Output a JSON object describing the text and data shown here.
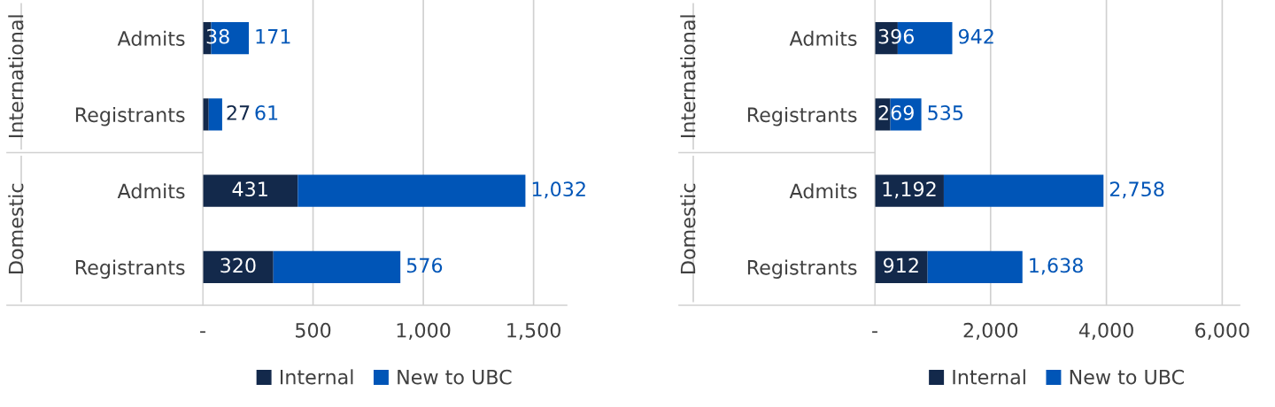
{
  "chart_data": [
    {
      "type": "bar",
      "orientation": "horizontal",
      "stacked": true,
      "categories": [
        "Admits",
        "Registrants",
        "Admits",
        "Registrants"
      ],
      "annotations": [
        "International",
        "Domestic"
      ],
      "series": [
        {
          "name": "Internal",
          "color": "#13294b",
          "values": [
            38,
            27,
            431,
            320
          ],
          "value_labels": [
            "38",
            "27",
            "431",
            "320"
          ]
        },
        {
          "name": "New to UBC",
          "color": "#0055b7",
          "values": [
            171,
            61,
            1032,
            576
          ],
          "value_labels": [
            "171",
            "61",
            "1,032",
            "576"
          ]
        }
      ],
      "xlim": [
        0,
        1650
      ],
      "xticks": [
        {
          "value": 0,
          "label": "-"
        },
        500,
        {
          "value": 1000,
          "label": "1,000"
        },
        {
          "value": 1500,
          "label": "1,500"
        }
      ],
      "grid": "x",
      "legend": "bottom"
    },
    {
      "type": "bar",
      "orientation": "horizontal",
      "stacked": true,
      "categories": [
        "Admits",
        "Registrants",
        "Admits",
        "Registrants"
      ],
      "annotations": [
        "International",
        "Domestic"
      ],
      "series": [
        {
          "name": "Internal",
          "color": "#13294b",
          "values": [
            396,
            269,
            1192,
            912
          ],
          "value_labels": [
            "396",
            "269",
            "1,192",
            "912"
          ]
        },
        {
          "name": "New to UBC",
          "color": "#0055b7",
          "values": [
            942,
            535,
            2758,
            1638
          ],
          "value_labels": [
            "942",
            "535",
            "2,758",
            "1,638"
          ]
        }
      ],
      "xlim": [
        0,
        6300
      ],
      "xticks": [
        {
          "value": 0,
          "label": "-"
        },
        {
          "value": 2000,
          "label": "2,000"
        },
        {
          "value": 4000,
          "label": "4,000"
        },
        {
          "value": 6000,
          "label": "6,000"
        }
      ],
      "grid": "x",
      "legend": "bottom"
    }
  ]
}
